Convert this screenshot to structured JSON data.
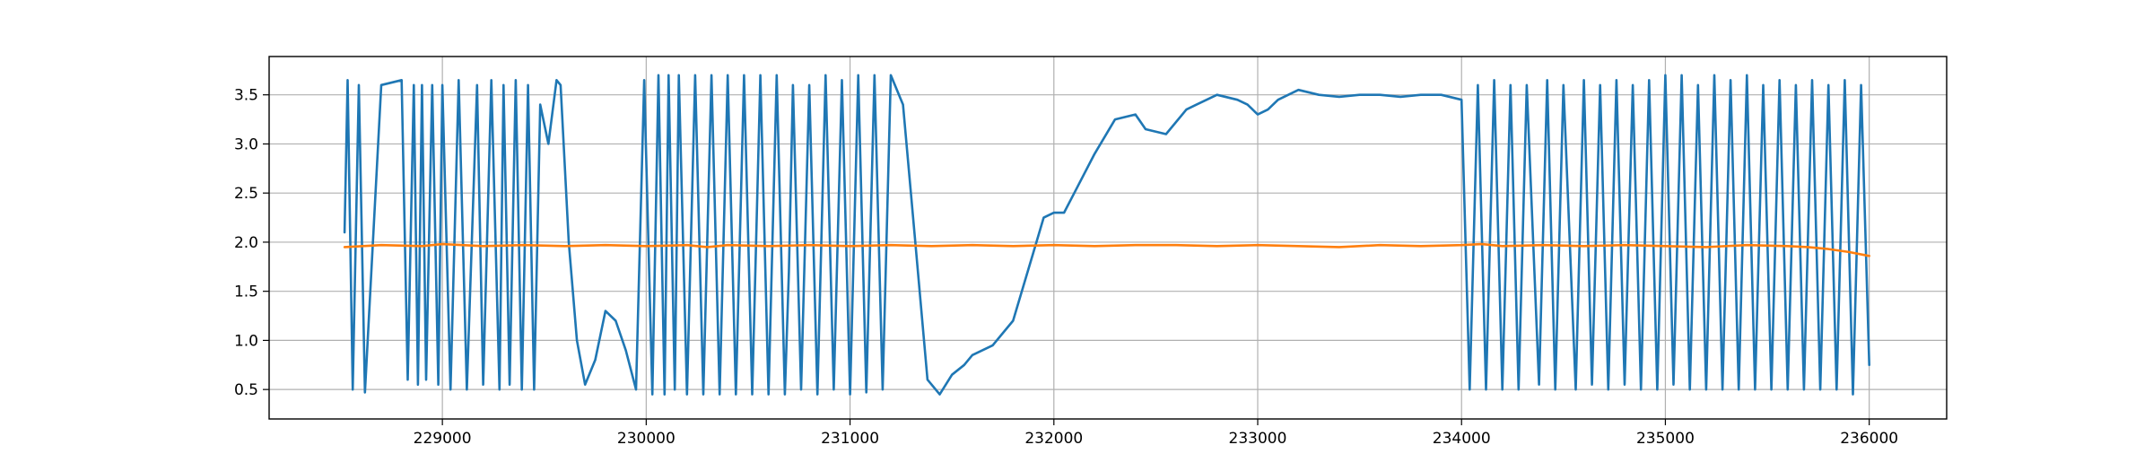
{
  "chart_data": {
    "type": "line",
    "title": "",
    "xlabel": "",
    "ylabel": "",
    "xlim": [
      228150,
      236380
    ],
    "ylim": [
      0.2,
      3.89
    ],
    "grid": true,
    "x_ticks": [
      229000,
      230000,
      231000,
      232000,
      233000,
      234000,
      235000,
      236000
    ],
    "x_tick_labels": [
      "229000",
      "230000",
      "231000",
      "232000",
      "233000",
      "234000",
      "235000",
      "236000"
    ],
    "y_ticks": [
      0.5,
      1.0,
      1.5,
      2.0,
      2.5,
      3.0,
      3.5
    ],
    "y_tick_labels": [
      "0.5",
      "1.0",
      "1.5",
      "2.0",
      "2.5",
      "3.0",
      "3.5"
    ],
    "series": [
      {
        "color": "#1f77b4",
        "x": [
          228520,
          228535,
          228560,
          228590,
          228620,
          228700,
          228800,
          228830,
          228860,
          228880,
          228900,
          228920,
          228950,
          228980,
          229000,
          229040,
          229080,
          229120,
          229170,
          229200,
          229240,
          229280,
          229300,
          229330,
          229360,
          229390,
          229420,
          229450,
          229480,
          229520,
          229560,
          229580,
          229620,
          229660,
          229700,
          229750,
          229800,
          229850,
          229900,
          229950,
          229990,
          230030,
          230060,
          230090,
          230110,
          230140,
          230160,
          230200,
          230240,
          230280,
          230320,
          230360,
          230400,
          230440,
          230480,
          230520,
          230560,
          230600,
          230640,
          230680,
          230700,
          230720,
          230760,
          230800,
          230840,
          230880,
          230920,
          230960,
          231000,
          231040,
          231080,
          231120,
          231160,
          231200,
          231260,
          231320,
          231380,
          231440,
          231500,
          231560,
          231600,
          231700,
          231800,
          231900,
          231950,
          232000,
          232050,
          232100,
          232200,
          232300,
          232400,
          232450,
          232550,
          232650,
          232700,
          232800,
          232900,
          232950,
          233000,
          233050,
          233100,
          233200,
          233300,
          233400,
          233500,
          233600,
          233700,
          233800,
          233900,
          234000,
          234040,
          234080,
          234120,
          234160,
          234200,
          234240,
          234280,
          234320,
          234380,
          234420,
          234460,
          234500,
          234560,
          234600,
          234640,
          234680,
          234720,
          234760,
          234800,
          234840,
          234880,
          234920,
          234960,
          235000,
          235040,
          235080,
          235120,
          235160,
          235200,
          235240,
          235280,
          235320,
          235360,
          235400,
          235440,
          235480,
          235520,
          235560,
          235600,
          235640,
          235680,
          235720,
          235760,
          235800,
          235840,
          235880,
          235920,
          235960,
          236000
        ],
        "y": [
          2.1,
          3.65,
          0.5,
          3.6,
          0.47,
          3.6,
          3.65,
          0.6,
          3.6,
          0.55,
          3.6,
          0.6,
          3.6,
          0.55,
          3.6,
          0.5,
          3.65,
          0.5,
          3.6,
          0.55,
          3.65,
          0.5,
          3.6,
          0.55,
          3.65,
          0.5,
          3.6,
          0.5,
          3.4,
          3.0,
          3.65,
          3.6,
          2.0,
          1.0,
          0.55,
          0.8,
          1.3,
          1.2,
          0.9,
          0.5,
          3.65,
          0.45,
          3.7,
          0.45,
          3.7,
          0.5,
          3.7,
          0.45,
          3.7,
          0.45,
          3.7,
          0.45,
          3.7,
          0.45,
          3.7,
          0.45,
          3.7,
          0.45,
          3.7,
          0.45,
          1.7,
          3.6,
          0.5,
          3.6,
          0.45,
          3.7,
          0.5,
          3.65,
          0.45,
          3.7,
          0.47,
          3.7,
          0.5,
          3.7,
          3.4,
          2.0,
          0.6,
          0.45,
          0.65,
          0.75,
          0.85,
          0.95,
          1.2,
          1.9,
          2.25,
          2.3,
          2.3,
          2.5,
          2.9,
          3.25,
          3.3,
          3.15,
          3.1,
          3.35,
          3.4,
          3.5,
          3.45,
          3.4,
          3.3,
          3.35,
          3.45,
          3.55,
          3.5,
          3.48,
          3.5,
          3.5,
          3.48,
          3.5,
          3.5,
          3.45,
          0.5,
          3.6,
          0.5,
          3.65,
          0.5,
          3.6,
          0.5,
          3.6,
          0.55,
          3.65,
          0.5,
          3.6,
          0.5,
          3.65,
          0.55,
          3.6,
          0.5,
          3.65,
          0.55,
          3.6,
          0.5,
          3.65,
          0.5,
          3.7,
          0.55,
          3.7,
          0.5,
          3.6,
          0.5,
          3.7,
          0.5,
          3.65,
          0.5,
          3.7,
          0.5,
          3.6,
          0.5,
          3.65,
          0.5,
          3.6,
          0.5,
          3.65,
          0.5,
          3.6,
          0.5,
          3.65,
          0.45,
          3.6,
          0.75
        ]
      },
      {
        "color": "#ff7f0e",
        "x": [
          228520,
          228700,
          228900,
          229000,
          229200,
          229400,
          229600,
          229800,
          230000,
          230200,
          230300,
          230400,
          230600,
          230800,
          231000,
          231200,
          231400,
          231600,
          231800,
          232000,
          232200,
          232400,
          232600,
          232800,
          233000,
          233200,
          233400,
          233600,
          233800,
          234000,
          234100,
          234200,
          234400,
          234600,
          234800,
          235000,
          235200,
          235400,
          235600,
          235700,
          235800,
          235900,
          236000
        ],
        "y": [
          1.95,
          1.97,
          1.96,
          1.98,
          1.96,
          1.97,
          1.96,
          1.97,
          1.96,
          1.97,
          1.95,
          1.97,
          1.96,
          1.97,
          1.96,
          1.97,
          1.96,
          1.97,
          1.96,
          1.97,
          1.96,
          1.97,
          1.97,
          1.96,
          1.97,
          1.96,
          1.95,
          1.97,
          1.96,
          1.97,
          1.98,
          1.96,
          1.97,
          1.96,
          1.97,
          1.96,
          1.95,
          1.97,
          1.96,
          1.95,
          1.93,
          1.9,
          1.86
        ]
      }
    ]
  }
}
